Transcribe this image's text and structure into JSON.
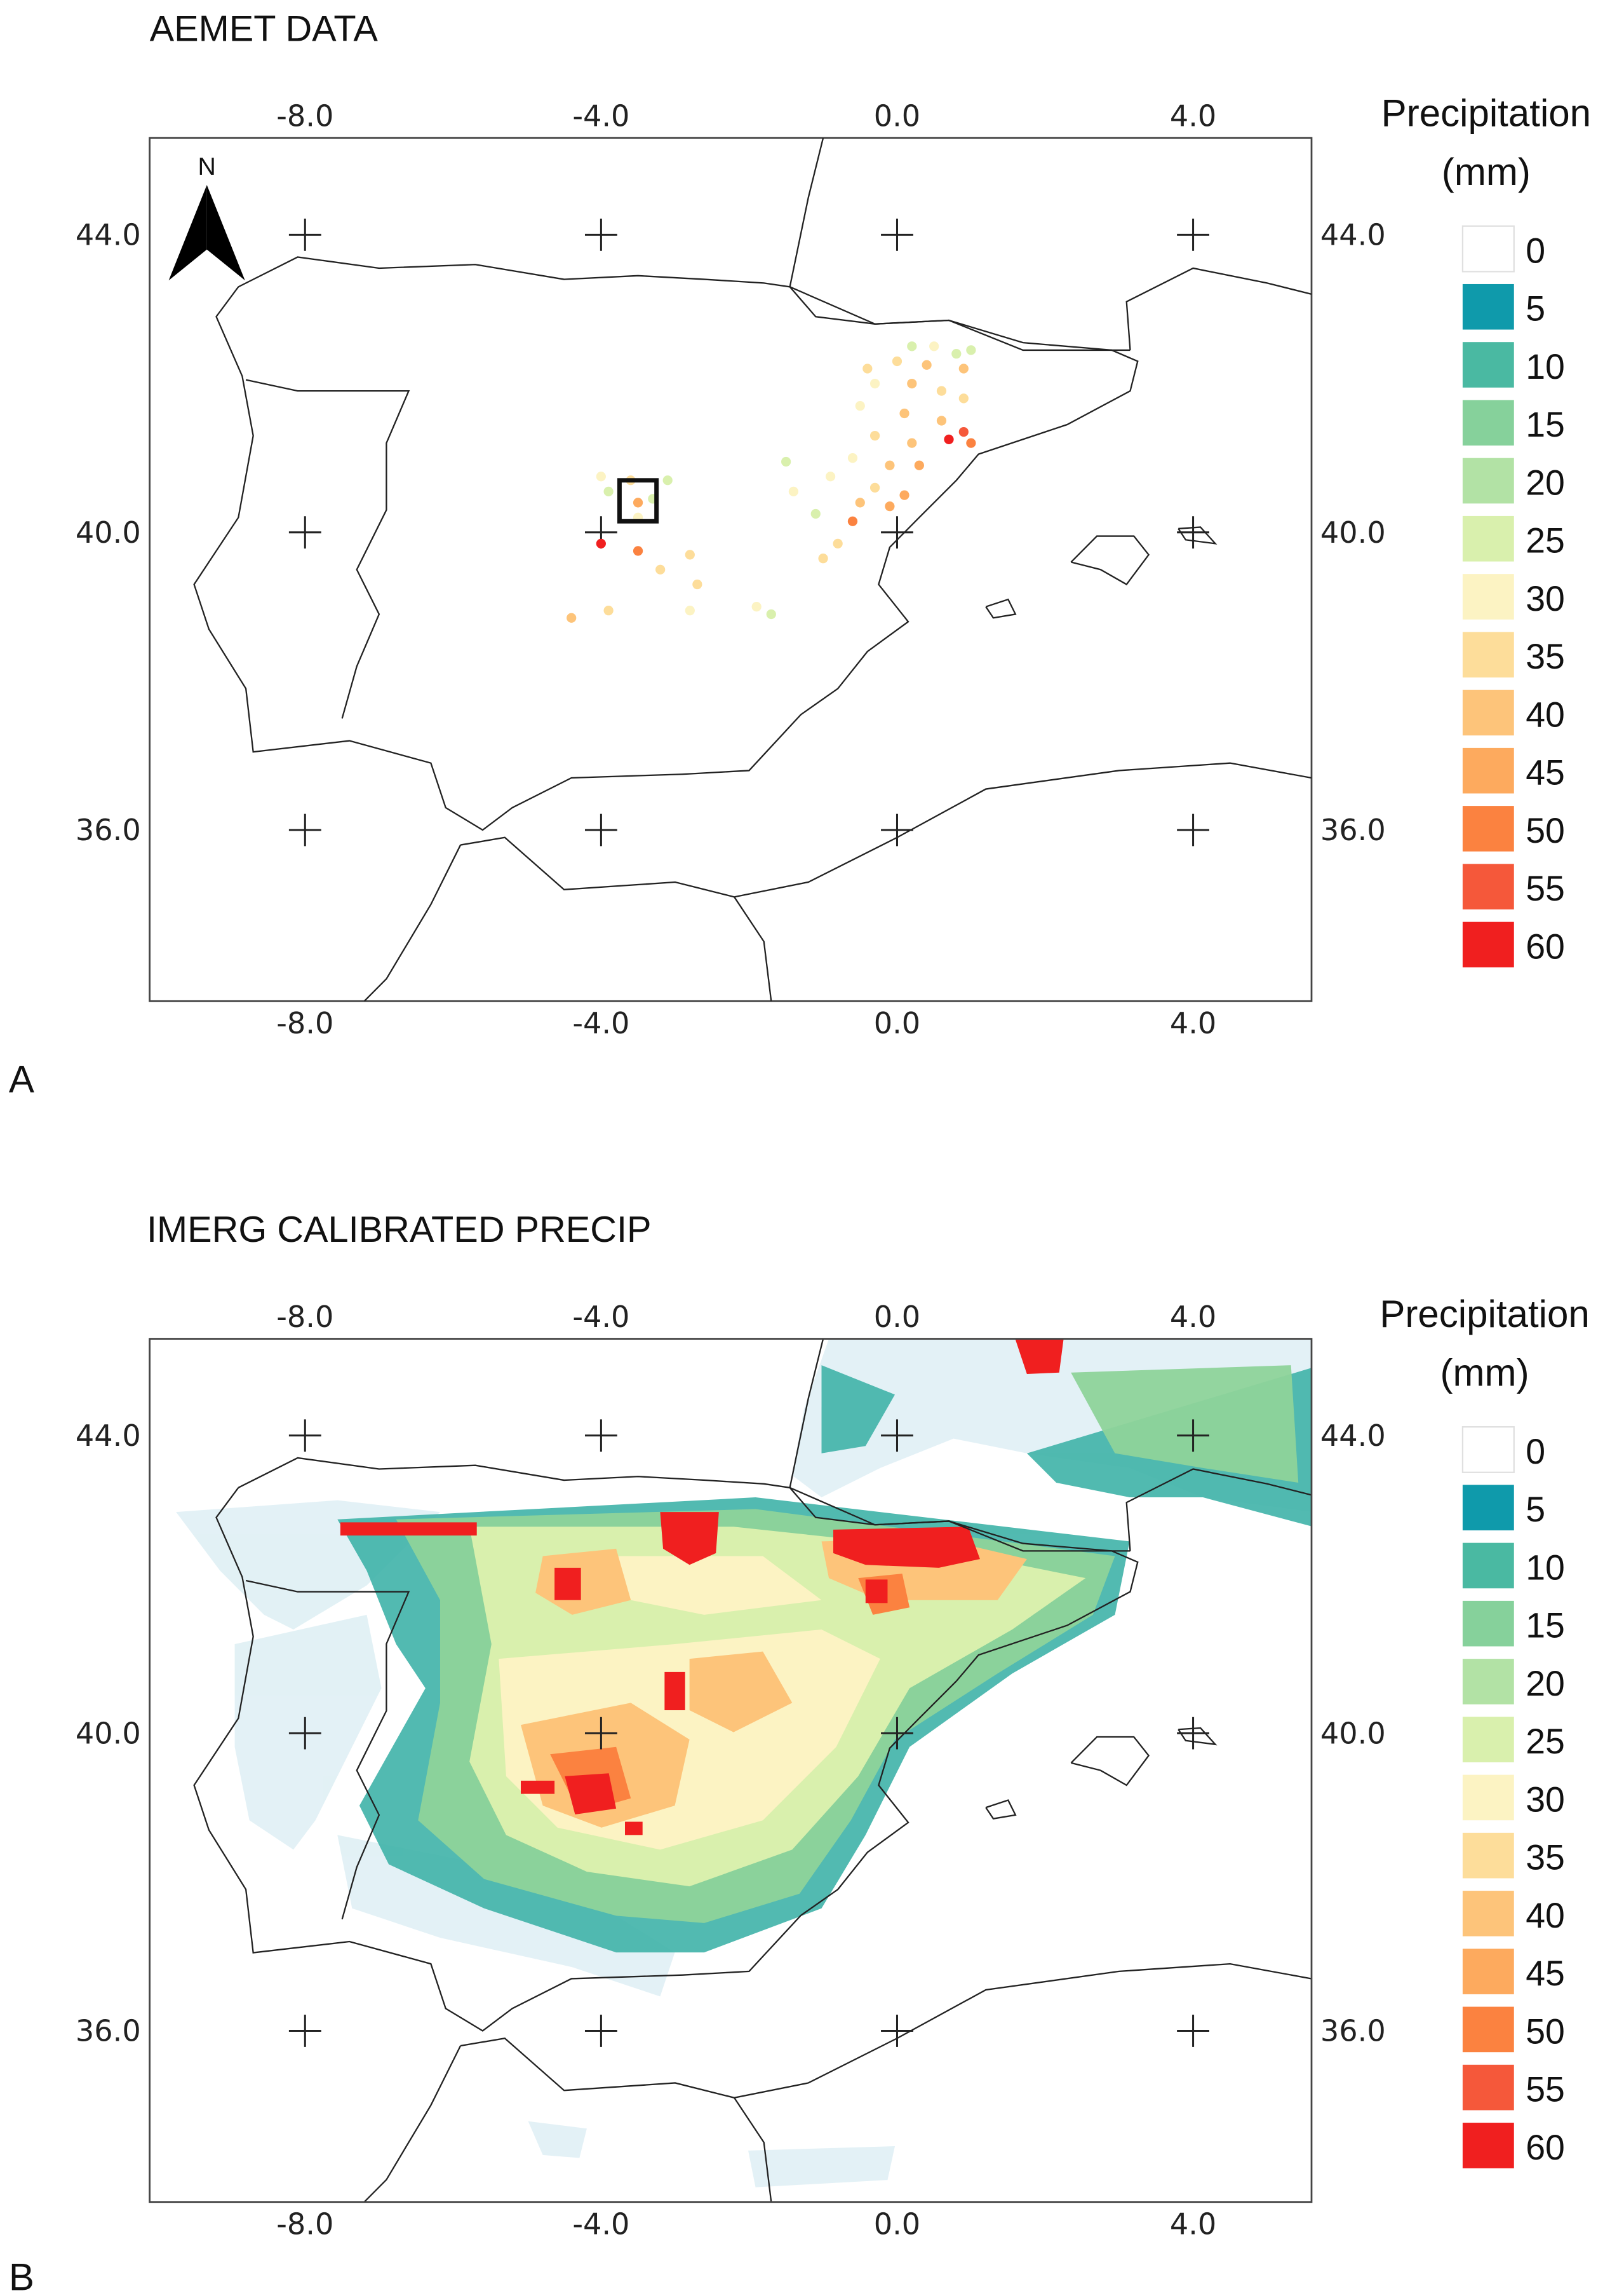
{
  "panels": [
    {
      "id": "A",
      "title": "AEMET DATA",
      "panel_label": "A",
      "x_ticks": [
        "-8.0",
        "-4.0",
        "0.0",
        "4.0"
      ],
      "y_ticks": [
        "44.0",
        "40.0",
        "36.0"
      ],
      "north_label": "N",
      "legend_title": [
        "Precipitation",
        "(mm)"
      ]
    },
    {
      "id": "B",
      "title": "IMERG CALIBRATED PRECIP",
      "panel_label": "B",
      "x_ticks": [
        "-8.0",
        "-4.0",
        "0.0",
        "4.0"
      ],
      "y_ticks": [
        "44.0",
        "40.0",
        "36.0"
      ],
      "legend_title": [
        "Precipitation",
        "(mm)"
      ]
    }
  ],
  "legend": {
    "values": [
      "0",
      "5",
      "10",
      "15",
      "20",
      "25",
      "30",
      "35",
      "40",
      "45",
      "50",
      "55",
      "60"
    ],
    "colors": [
      "#ffffff",
      "#0f9aab",
      "#4ab9a2",
      "#86d19b",
      "#b2e2a5",
      "#d9f0ad",
      "#fcf3c3",
      "#fddd9a",
      "#fdc47a",
      "#fdaa5e",
      "#fb8240",
      "#f5583a",
      "#f01f1f"
    ]
  },
  "map_extent": {
    "lon_min": -10.1,
    "lon_max": 5.6,
    "lat_min": 33.7,
    "lat_max": 45.3
  },
  "stations": [
    {
      "lon": 0.2,
      "lat": 42.5,
      "v": 25
    },
    {
      "lon": 0.5,
      "lat": 42.5,
      "v": 30
    },
    {
      "lon": 0.8,
      "lat": 42.4,
      "v": 25
    },
    {
      "lon": 1.0,
      "lat": 42.45,
      "v": 25
    },
    {
      "lon": 0.0,
      "lat": 42.3,
      "v": 35
    },
    {
      "lon": 0.4,
      "lat": 42.25,
      "v": 40
    },
    {
      "lon": 0.9,
      "lat": 42.2,
      "v": 40
    },
    {
      "lon": -0.4,
      "lat": 42.2,
      "v": 35
    },
    {
      "lon": -0.3,
      "lat": 42.0,
      "v": 30
    },
    {
      "lon": 0.2,
      "lat": 42.0,
      "v": 40
    },
    {
      "lon": 0.6,
      "lat": 41.9,
      "v": 35
    },
    {
      "lon": 0.9,
      "lat": 41.8,
      "v": 35
    },
    {
      "lon": -0.5,
      "lat": 41.7,
      "v": 30
    },
    {
      "lon": 0.1,
      "lat": 41.6,
      "v": 40
    },
    {
      "lon": 0.6,
      "lat": 41.5,
      "v": 40
    },
    {
      "lon": 0.9,
      "lat": 41.35,
      "v": 55
    },
    {
      "lon": 1.0,
      "lat": 41.2,
      "v": 50
    },
    {
      "lon": 0.7,
      "lat": 41.25,
      "v": 60
    },
    {
      "lon": -0.3,
      "lat": 41.3,
      "v": 35
    },
    {
      "lon": 0.2,
      "lat": 41.2,
      "v": 40
    },
    {
      "lon": -0.6,
      "lat": 41.0,
      "v": 30
    },
    {
      "lon": -0.1,
      "lat": 40.9,
      "v": 40
    },
    {
      "lon": 0.3,
      "lat": 40.9,
      "v": 45
    },
    {
      "lon": -1.5,
      "lat": 40.95,
      "v": 25
    },
    {
      "lon": -0.9,
      "lat": 40.75,
      "v": 30
    },
    {
      "lon": -0.3,
      "lat": 40.6,
      "v": 35
    },
    {
      "lon": 0.1,
      "lat": 40.5,
      "v": 45
    },
    {
      "lon": -1.4,
      "lat": 40.55,
      "v": 30
    },
    {
      "lon": -0.5,
      "lat": 40.4,
      "v": 40
    },
    {
      "lon": -0.1,
      "lat": 40.35,
      "v": 45
    },
    {
      "lon": -1.1,
      "lat": 40.25,
      "v": 25
    },
    {
      "lon": -0.6,
      "lat": 40.15,
      "v": 50
    },
    {
      "lon": -0.8,
      "lat": 39.85,
      "v": 35
    },
    {
      "lon": -1.0,
      "lat": 39.65,
      "v": 35
    },
    {
      "lon": -4.0,
      "lat": 40.75,
      "v": 30
    },
    {
      "lon": -3.6,
      "lat": 40.7,
      "v": 35
    },
    {
      "lon": -3.1,
      "lat": 40.7,
      "v": 25
    },
    {
      "lon": -3.9,
      "lat": 40.55,
      "v": 25
    },
    {
      "lon": -3.5,
      "lat": 40.4,
      "v": 45
    },
    {
      "lon": -3.3,
      "lat": 40.45,
      "v": 25
    },
    {
      "lon": -3.5,
      "lat": 40.2,
      "v": 30
    },
    {
      "lon": -4.0,
      "lat": 39.85,
      "v": 60
    },
    {
      "lon": -3.5,
      "lat": 39.75,
      "v": 50
    },
    {
      "lon": -2.8,
      "lat": 39.7,
      "v": 35
    },
    {
      "lon": -3.2,
      "lat": 39.5,
      "v": 35
    },
    {
      "lon": -2.7,
      "lat": 39.3,
      "v": 35
    },
    {
      "lon": -3.9,
      "lat": 38.95,
      "v": 35
    },
    {
      "lon": -2.8,
      "lat": 38.95,
      "v": 30
    },
    {
      "lon": -1.9,
      "lat": 39.0,
      "v": 30
    },
    {
      "lon": -1.7,
      "lat": 38.9,
      "v": 25
    },
    {
      "lon": -4.4,
      "lat": 38.85,
      "v": 40
    }
  ],
  "study_box": {
    "lon_min": -3.75,
    "lon_max": -3.25,
    "lat_min": 40.15,
    "lat_max": 40.7
  }
}
